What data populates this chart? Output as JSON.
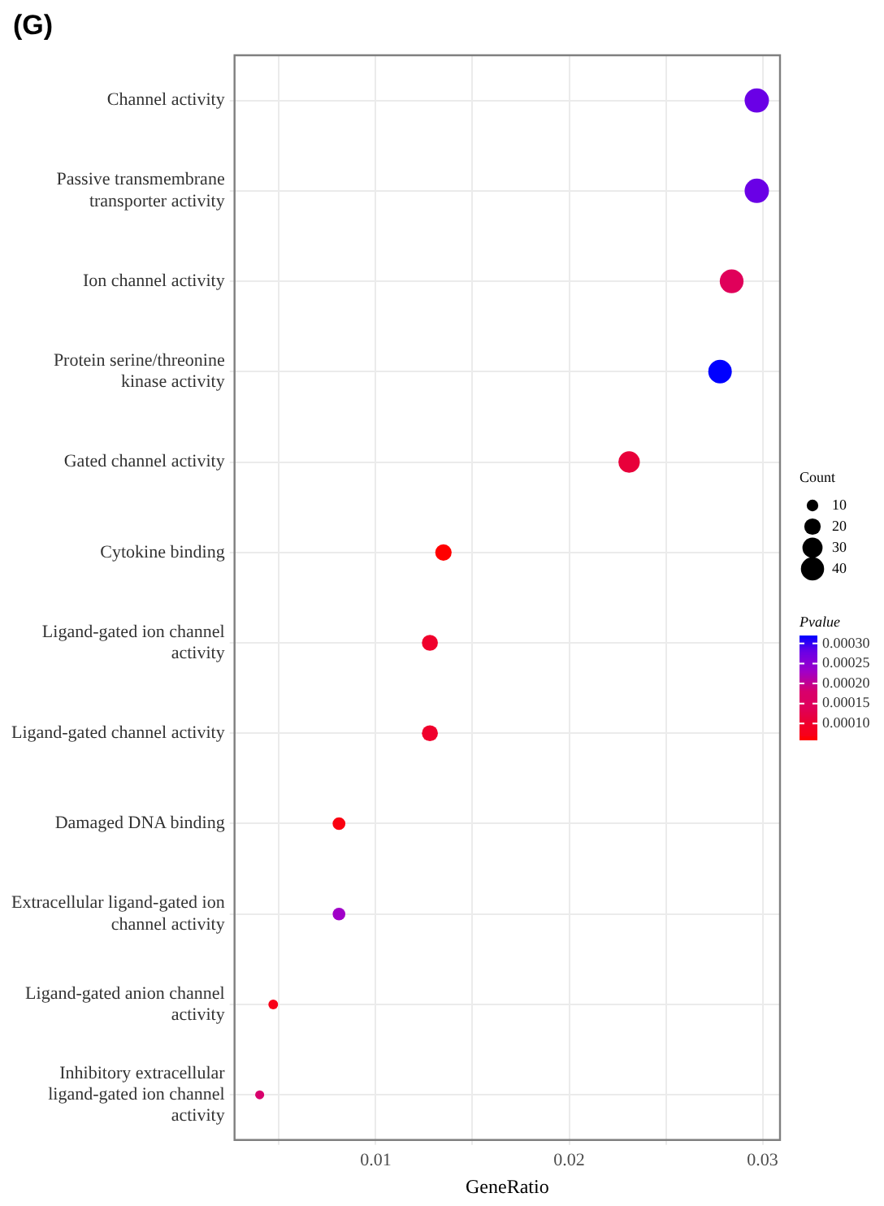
{
  "chart_data": {
    "type": "bubble",
    "title": "(G)",
    "xlabel": "GeneRatio",
    "legend_title": "Count",
    "clabel": "Pvalue",
    "categories": [
      "Channel activity",
      "Passive transmembrane transporter activity",
      "Ion channel activity",
      "Protein serine/threonine kinase activity",
      "Gated channel activity",
      "Cytokine binding",
      "Ligand-gated ion channel activity",
      "Ligand-gated channel activity",
      "Damaged DNA binding",
      "Extracellular ligand-gated ion channel activity",
      "Ligand-gated anion channel activity",
      "Inhibitory extracellular ligand-gated ion channel activity"
    ],
    "values": [
      0.0297,
      0.0297,
      0.0284,
      0.0278,
      0.0231,
      0.0135,
      0.0128,
      0.0128,
      0.0081,
      0.0081,
      0.0047,
      0.004
    ],
    "sizes": [
      44,
      44,
      42,
      41,
      34,
      20,
      19,
      19,
      12,
      12,
      7,
      6
    ],
    "size_legend": [
      {
        "value": 10,
        "label": "10"
      },
      {
        "value": 20,
        "label": "20"
      },
      {
        "value": 30,
        "label": "30"
      },
      {
        "value": 40,
        "label": "40"
      }
    ],
    "orientation": "horizontal",
    "cvalues": [
      0.00028,
      0.00028,
      0.00014,
      0.00032,
      0.00011,
      6e-05,
      0.0001,
      0.0001,
      7e-05,
      0.00023,
      7e-05,
      0.00018
    ],
    "colors": [
      "#6a00e6",
      "#6a00e6",
      "#e0005a",
      "#0000ff",
      "#e8003a",
      "#ff0000",
      "#f0002c",
      "#f0002c",
      "#fa0010",
      "#a000c8",
      "#f80018",
      "#d8006c"
    ],
    "clim": [
      6e-05,
      0.00032
    ],
    "cticks": [
      {
        "value": 0.0001,
        "label": "0.00010"
      },
      {
        "value": 0.00015,
        "label": "0.00015"
      },
      {
        "value": 0.0002,
        "label": "0.00020"
      },
      {
        "value": 0.00025,
        "label": "0.00025"
      },
      {
        "value": 0.0003,
        "label": "0.00030"
      }
    ],
    "xlim": [
      0.0027,
      0.0309
    ],
    "xticks": [
      {
        "value": 0.005,
        "label": null
      },
      {
        "value": 0.01,
        "label": "0.01"
      },
      {
        "value": 0.015,
        "label": null
      },
      {
        "value": 0.02,
        "label": "0.02"
      },
      {
        "value": 0.025,
        "label": null
      },
      {
        "value": 0.03,
        "label": "0.03"
      }
    ],
    "grid": true,
    "marker": "circle"
  }
}
